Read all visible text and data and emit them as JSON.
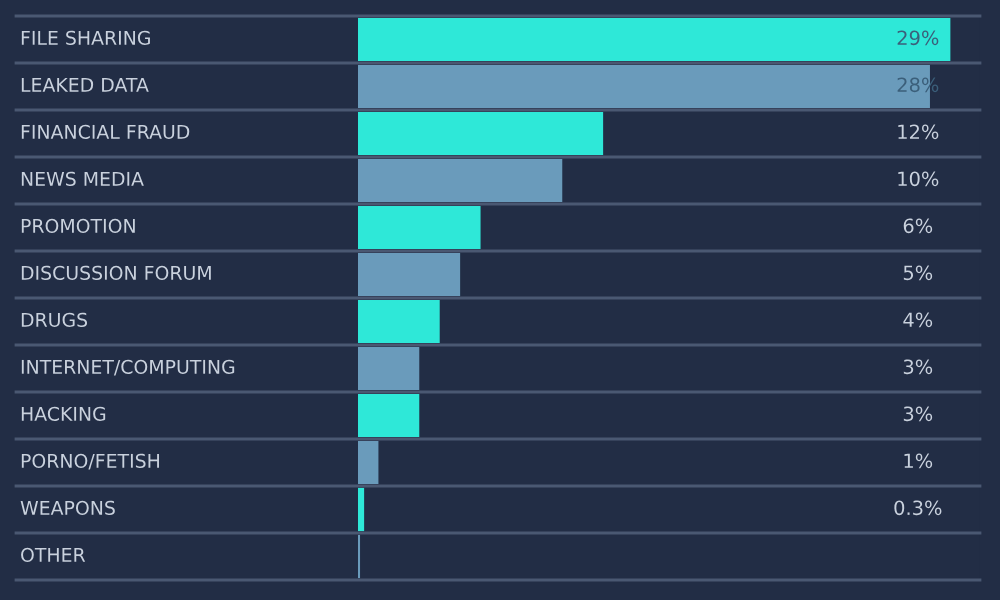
{
  "chart_data": {
    "type": "bar",
    "orientation": "horizontal",
    "categories": [
      "FILE SHARING",
      "LEAKED DATA",
      "FINANCIAL FRAUD",
      "NEWS MEDIA",
      "PROMOTION",
      "DISCUSSION FORUM",
      "DRUGS",
      "INTERNET/COMPUTING",
      "HACKING",
      "PORNO/FETISH",
      "WEAPONS",
      "OTHER"
    ],
    "values": [
      29,
      28,
      12,
      10,
      6,
      5,
      4,
      3,
      3,
      1,
      0.3,
      0.1
    ],
    "colors": [
      "#2ee8d8",
      "#6a9bbb",
      "#2ee8d8",
      "#6a9bbb",
      "#2ee8d8",
      "#6a9bbb",
      "#2ee8d8",
      "#6a9bbb",
      "#2ee8d8",
      "#6a9bbb",
      "#2ee8d8",
      "#6a9bbb"
    ],
    "value_labels": [
      "29%",
      "28%",
      "12%",
      "10%",
      "6%",
      "5%",
      "4%",
      "3%",
      "3%",
      "1%",
      "0.3%",
      null
    ]
  }
}
